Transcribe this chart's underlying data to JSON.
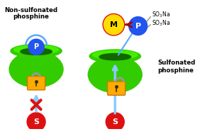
{
  "bg_color": "#ffffff",
  "left_title_line1": "Non-sulfonated",
  "left_title_line2": "phosphine",
  "right_title_line1": "Sulfonated",
  "right_title_line2": "phosphine",
  "green_bright": "#44ee00",
  "green_mid": "#33cc00",
  "green_dark": "#229900",
  "green_inner": "#116600",
  "blue_p": "#2255ee",
  "blue_line": "#55aaff",
  "blue_arrow": "#88ccff",
  "red_color": "#dd1111",
  "yellow_color": "#ffdd00",
  "orange_color": "#ffaa00",
  "orange_dark": "#cc7700",
  "gray_lock": "#999999",
  "figsize": [
    2.82,
    1.89
  ],
  "dpi": 100
}
